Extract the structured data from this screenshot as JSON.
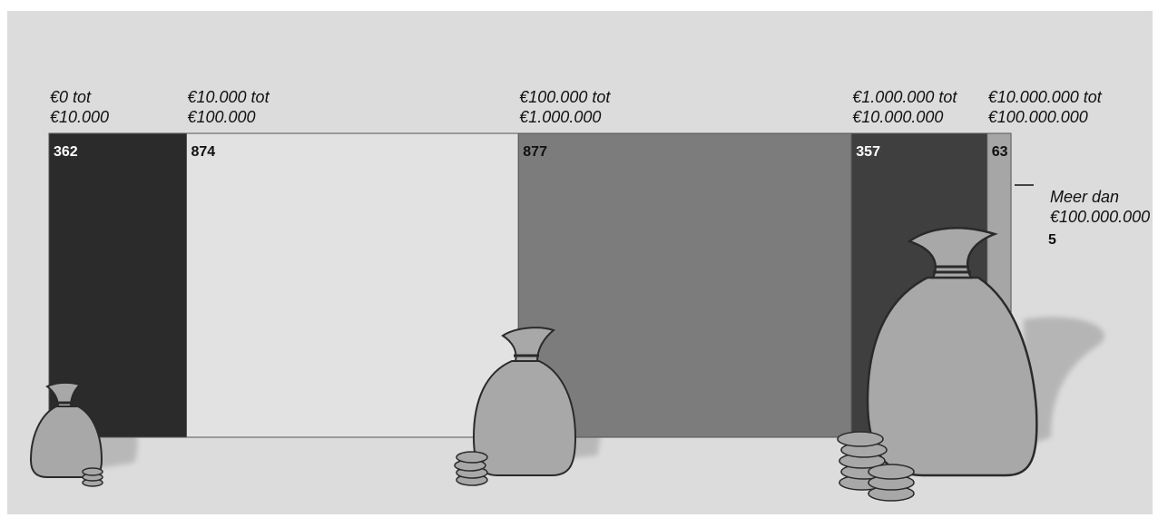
{
  "chart_data": {
    "type": "bar",
    "categories": [
      [
        "€0 tot",
        "€10.000"
      ],
      [
        "€10.000 tot",
        "€100.000"
      ],
      [
        "€100.000 tot",
        "€1.000.000"
      ],
      [
        "€1.000.000 tot",
        "€10.000.000"
      ],
      [
        "€10.000.000 tot",
        "€100.000.000"
      ],
      [
        "Meer dan",
        "€100.000.000"
      ]
    ],
    "values": [
      362,
      874,
      877,
      357,
      63,
      5
    ],
    "value_labels": [
      "362",
      "874",
      "877",
      "357",
      "63",
      "5"
    ],
    "colors": [
      "#2b2b2b",
      "#e2e2e2",
      "#7c7c7c",
      "#3f3f3f",
      "#a6a6a6",
      "#e2e2e2"
    ],
    "label_colors": [
      "#ffffff",
      "#111111",
      "#111111",
      "#ffffff",
      "#111111",
      "#111111"
    ],
    "title": "",
    "xlabel": "",
    "ylabel": ""
  }
}
